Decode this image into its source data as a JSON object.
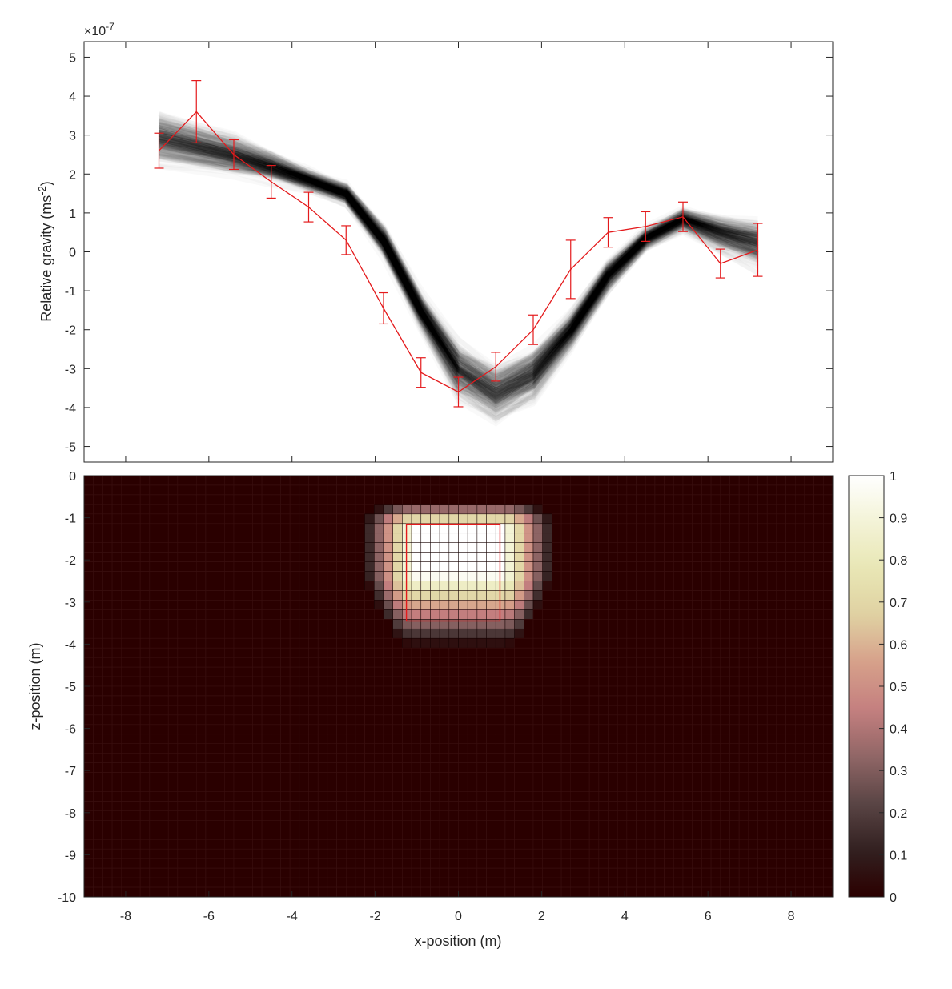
{
  "chart_data": [
    {
      "type": "line",
      "ylabel_main": "Relative gravity (ms",
      "ylabel_sup": "-2",
      "ylabel_end": ")",
      "exponent_base": "×10",
      "exponent_power": "-7",
      "xlim": [
        -9,
        9
      ],
      "ylim": [
        -5.4,
        5.4
      ],
      "yticks": [
        5,
        4,
        3,
        2,
        1,
        0,
        -1,
        -2,
        -3,
        -4,
        -5
      ],
      "xticks": [
        -8,
        -6,
        -4,
        -2,
        0,
        2,
        4,
        6,
        8
      ],
      "x_tick_labels_shown": false,
      "grid": false,
      "ensemble": {
        "color": "#000000",
        "mean": [
          2.95,
          2.5,
          2.2,
          1.85,
          1.5,
          0.3,
          -1.5,
          -3.0,
          -3.6,
          -3.1,
          -2.0,
          -0.6,
          0.35,
          0.85,
          0.5,
          0.25
        ],
        "spread": [
          0.45,
          0.35,
          0.25,
          0.2,
          0.2,
          0.3,
          0.35,
          0.55,
          0.55,
          0.5,
          0.35,
          0.3,
          0.2,
          0.2,
          0.3,
          0.4
        ]
      },
      "series": [
        {
          "color": "#e41a1c",
          "x": [
            -7.2,
            -6.3,
            -5.4,
            -4.5,
            -3.6,
            -2.7,
            -1.8,
            -0.9,
            0.0,
            0.9,
            1.8,
            2.7,
            3.6,
            4.5,
            5.4,
            6.3,
            7.2
          ],
          "y": [
            2.6,
            3.6,
            2.5,
            1.8,
            1.15,
            0.3,
            -1.45,
            -3.1,
            -3.6,
            -2.95,
            -2.0,
            -0.45,
            0.5,
            0.65,
            0.9,
            -0.3,
            0.05
          ],
          "err": [
            0.45,
            0.8,
            0.38,
            0.42,
            0.38,
            0.37,
            0.4,
            0.38,
            0.38,
            0.37,
            0.38,
            0.75,
            0.38,
            0.38,
            0.38,
            0.37,
            0.68
          ]
        }
      ]
    },
    {
      "type": "heatmap",
      "xlabel": "x-position (m)",
      "ylabel": "z-position (m)",
      "xlim": [
        -9,
        9
      ],
      "ylim": [
        -10,
        0
      ],
      "xticks": [
        -8,
        -6,
        -4,
        -2,
        0,
        2,
        4,
        6,
        8
      ],
      "yticks": [
        0,
        -1,
        -2,
        -3,
        -4,
        -5,
        -6,
        -7,
        -8,
        -9,
        -10
      ],
      "cell_size": 0.225,
      "background_value": 0,
      "anomaly": {
        "center_x": 0,
        "center_z": -1.95,
        "core_x": [
          -1.1,
          1.1
        ],
        "core_z": [
          -1.2,
          -2.3
        ],
        "radius_x": 1.05,
        "radius_z_top": 0.55,
        "radius_z_bottom": 1.5,
        "taper_per_m": 0.35,
        "falloff": 1.15
      },
      "true_body": {
        "x": [
          -1.25,
          1.0
        ],
        "z": [
          -1.15,
          -3.45
        ],
        "color": "#e41a1c"
      },
      "colorbar": {
        "ticks": [
          1,
          0.9,
          0.8,
          0.7,
          0.6,
          0.5,
          0.4,
          0.3,
          0.2,
          0.1,
          0
        ],
        "range": [
          0,
          1
        ],
        "colormap": [
          "#2b0000",
          "#322020",
          "#5a4545",
          "#906666",
          "#c47f7f",
          "#d6a08a",
          "#dfd0a2",
          "#e8e6b4",
          "#f3f3d6",
          "#ffffff"
        ]
      }
    }
  ]
}
